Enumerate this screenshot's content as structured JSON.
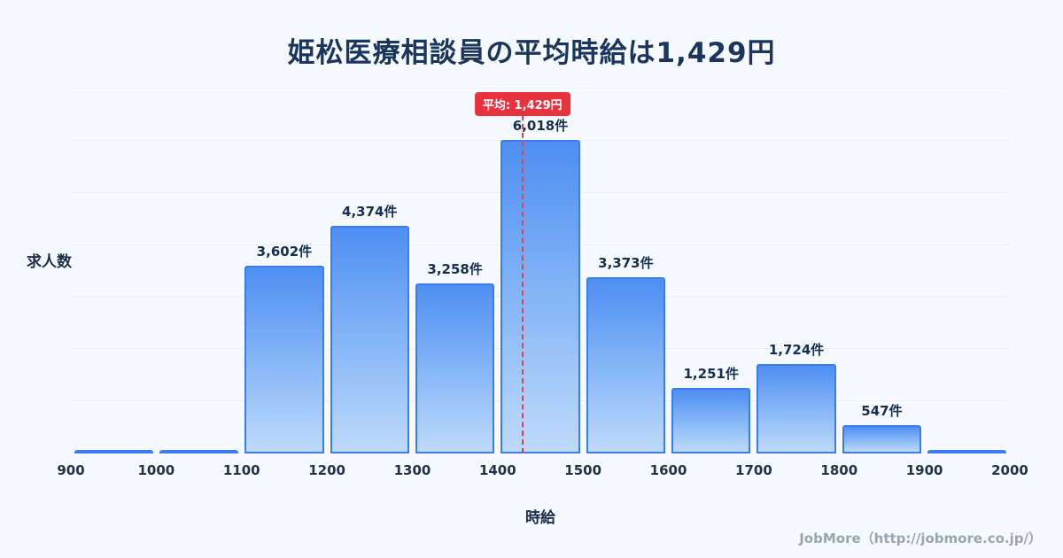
{
  "title": "姫松医療相談員の平均時給は1,429円",
  "footer": {
    "credit": "JobMore（http://jobmore.co.jp/）"
  },
  "chart_data": {
    "type": "bar",
    "title": "姫松医療相談員の平均時給は1,429円",
    "xlabel": "時給",
    "ylabel": "求人数",
    "bin_edges": [
      900,
      1000,
      1100,
      1200,
      1300,
      1400,
      1500,
      1600,
      1700,
      1800,
      1900,
      2000
    ],
    "x_tick_labels": [
      "900",
      "1000",
      "1100",
      "1200",
      "1300",
      "1400",
      "1500",
      "1600",
      "1700",
      "1800",
      "1900",
      "2000"
    ],
    "categories": [
      "900-1000",
      "1000-1100",
      "1100-1200",
      "1200-1300",
      "1300-1400",
      "1400-1500",
      "1500-1600",
      "1600-1700",
      "1700-1800",
      "1800-1900",
      "1900-2000"
    ],
    "values": [
      40,
      40,
      3602,
      4374,
      3258,
      6018,
      3373,
      1251,
      1724,
      547,
      40
    ],
    "bar_labels": [
      "",
      "",
      "3,602件",
      "4,374件",
      "3,258件",
      "6,018件",
      "3,373件",
      "1,251件",
      "1,724件",
      "547件",
      ""
    ],
    "ylim": [
      0,
      7000
    ],
    "grid": "horizontal-faint",
    "legend": "none",
    "average_value": 1429,
    "average_label": "平均: 1,429円",
    "colors": {
      "bar_fill_top": "#4e8ff2",
      "bar_fill_bottom": "#bedafb",
      "bar_border": "#3b7df0",
      "average_line": "#e8414b",
      "average_badge_bg": "#e8333f",
      "title_text": "#1a365d",
      "background": "#f6f9fd",
      "footer_text": "#99a5b4"
    }
  }
}
